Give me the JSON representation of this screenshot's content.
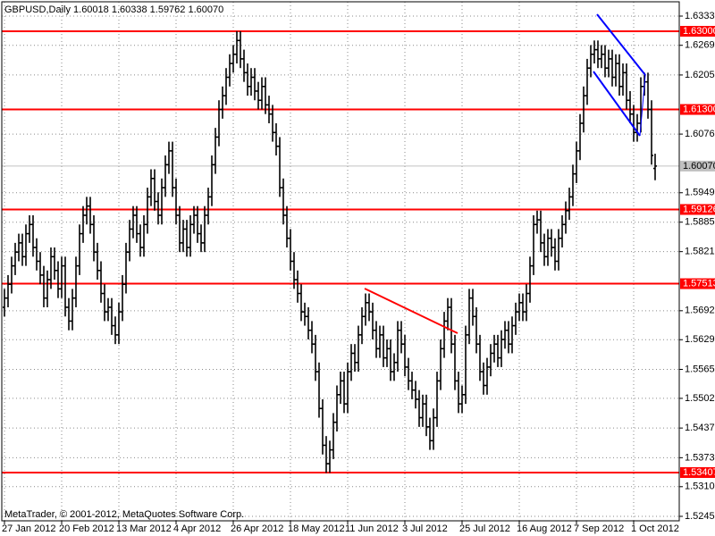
{
  "chart_data": {
    "type": "ohlc",
    "title": "GBPUSD,Daily 1.60018 1.60338 1.59762 1.60070",
    "footer": "MetaTrader, © 2001-2012, MetaQuotes Software Corp.",
    "ylim": [
      1.52358,
      1.63641
    ],
    "yticks": [
      {
        "value": 1.6333,
        "label": "1.63330"
      },
      {
        "value": 1.62695,
        "label": "1.62695"
      },
      {
        "value": 1.6205,
        "label": "1.62050"
      },
      {
        "value": 1.60765,
        "label": "1.60765"
      },
      {
        "value": 1.5949,
        "label": "1.59490"
      },
      {
        "value": 1.5885,
        "label": "1.58850"
      },
      {
        "value": 1.5821,
        "label": "1.58210"
      },
      {
        "value": 1.56925,
        "label": "1.56925"
      },
      {
        "value": 1.56295,
        "label": "1.56295"
      },
      {
        "value": 1.5565,
        "label": "1.55650"
      },
      {
        "value": 1.5502,
        "label": "1.55020"
      },
      {
        "value": 1.54375,
        "label": "1.54375"
      },
      {
        "value": 1.5373,
        "label": "1.53730"
      },
      {
        "value": 1.531,
        "label": "1.53100"
      },
      {
        "value": 1.52455,
        "label": "1.52455"
      }
    ],
    "xticks": [
      {
        "value": 0,
        "label": "27 Jan 2012"
      },
      {
        "value": 16,
        "label": "20 Feb 2012"
      },
      {
        "value": 32,
        "label": "13 Mar 2012"
      },
      {
        "value": 48,
        "label": "4 Apr 2012"
      },
      {
        "value": 64,
        "label": "26 Apr 2012"
      },
      {
        "value": 80,
        "label": "18 May 2012"
      },
      {
        "value": 96,
        "label": "11 Jun 2012"
      },
      {
        "value": 112,
        "label": "3 Jul 2012"
      },
      {
        "value": 128,
        "label": "25 Jul 2012"
      },
      {
        "value": 144,
        "label": "16 Aug 2012"
      },
      {
        "value": 160,
        "label": "7 Sep 2012"
      },
      {
        "value": 176,
        "label": "1 Oct 2012"
      }
    ],
    "grid": true,
    "bar_color": "#000000",
    "levels": [
      {
        "value": 1.63,
        "label": "1.63000"
      },
      {
        "value": 1.613,
        "label": "1.61300"
      },
      {
        "value": 1.59126,
        "label": "1.59126"
      },
      {
        "value": 1.57513,
        "label": "1.57513"
      },
      {
        "value": 1.53407,
        "label": "1.53407"
      }
    ],
    "level_color": "#ff0000",
    "current_price": {
      "value": 1.6007,
      "label": "1.60070"
    },
    "ohlc": [
      [
        1.57,
        1.574,
        1.568,
        1.572
      ],
      [
        1.572,
        1.577,
        1.57,
        1.575
      ],
      [
        1.575,
        1.581,
        1.573,
        1.579
      ],
      [
        1.579,
        1.584,
        1.577,
        1.582
      ],
      [
        1.582,
        1.586,
        1.58,
        1.584
      ],
      [
        1.584,
        1.586,
        1.579,
        1.581
      ],
      [
        1.581,
        1.588,
        1.579,
        1.586
      ],
      [
        1.586,
        1.59,
        1.584,
        1.588
      ],
      [
        1.588,
        1.59,
        1.581,
        1.583
      ],
      [
        1.583,
        1.585,
        1.578,
        1.58
      ],
      [
        1.58,
        1.582,
        1.575,
        1.577
      ],
      [
        1.577,
        1.579,
        1.57,
        1.572
      ],
      [
        1.572,
        1.578,
        1.57,
        1.576
      ],
      [
        1.576,
        1.583,
        1.574,
        1.581
      ],
      [
        1.581,
        1.583,
        1.576,
        1.578
      ],
      [
        1.578,
        1.58,
        1.572,
        1.574
      ],
      [
        1.574,
        1.581,
        1.572,
        1.579
      ],
      [
        1.579,
        1.581,
        1.568,
        1.57
      ],
      [
        1.57,
        1.572,
        1.565,
        1.567
      ],
      [
        1.567,
        1.574,
        1.565,
        1.572
      ],
      [
        1.572,
        1.581,
        1.57,
        1.579
      ],
      [
        1.579,
        1.588,
        1.577,
        1.586
      ],
      [
        1.586,
        1.592,
        1.584,
        1.59
      ],
      [
        1.59,
        1.594,
        1.588,
        1.592
      ],
      [
        1.592,
        1.594,
        1.586,
        1.588
      ],
      [
        1.588,
        1.59,
        1.58,
        1.582
      ],
      [
        1.582,
        1.584,
        1.576,
        1.578
      ],
      [
        1.578,
        1.58,
        1.571,
        1.573
      ],
      [
        1.573,
        1.575,
        1.567,
        1.569
      ],
      [
        1.569,
        1.572,
        1.567,
        1.57
      ],
      [
        1.57,
        1.572,
        1.564,
        1.566
      ],
      [
        1.566,
        1.568,
        1.562,
        1.564
      ],
      [
        1.564,
        1.571,
        1.562,
        1.569
      ],
      [
        1.569,
        1.577,
        1.567,
        1.575
      ],
      [
        1.575,
        1.584,
        1.573,
        1.582
      ],
      [
        1.582,
        1.589,
        1.58,
        1.587
      ],
      [
        1.587,
        1.592,
        1.585,
        1.59
      ],
      [
        1.59,
        1.592,
        1.584,
        1.586
      ],
      [
        1.586,
        1.588,
        1.581,
        1.583
      ],
      [
        1.583,
        1.59,
        1.581,
        1.588
      ],
      [
        1.588,
        1.596,
        1.586,
        1.594
      ],
      [
        1.594,
        1.6,
        1.592,
        1.598
      ],
      [
        1.598,
        1.6,
        1.591,
        1.593
      ],
      [
        1.593,
        1.595,
        1.588,
        1.59
      ],
      [
        1.59,
        1.598,
        1.588,
        1.596
      ],
      [
        1.596,
        1.603,
        1.594,
        1.601
      ],
      [
        1.601,
        1.606,
        1.599,
        1.604
      ],
      [
        1.604,
        1.606,
        1.594,
        1.596
      ],
      [
        1.596,
        1.598,
        1.588,
        1.59
      ],
      [
        1.59,
        1.592,
        1.582,
        1.584
      ],
      [
        1.584,
        1.589,
        1.582,
        1.587
      ],
      [
        1.587,
        1.589,
        1.581,
        1.583
      ],
      [
        1.583,
        1.59,
        1.581,
        1.588
      ],
      [
        1.588,
        1.592,
        1.586,
        1.59
      ],
      [
        1.59,
        1.592,
        1.584,
        1.586
      ],
      [
        1.586,
        1.588,
        1.582,
        1.584
      ],
      [
        1.584,
        1.592,
        1.582,
        1.59
      ],
      [
        1.59,
        1.596,
        1.588,
        1.594
      ],
      [
        1.594,
        1.603,
        1.592,
        1.601
      ],
      [
        1.601,
        1.609,
        1.599,
        1.607
      ],
      [
        1.607,
        1.615,
        1.605,
        1.613
      ],
      [
        1.613,
        1.618,
        1.611,
        1.616
      ],
      [
        1.616,
        1.622,
        1.614,
        1.62
      ],
      [
        1.62,
        1.625,
        1.618,
        1.623
      ],
      [
        1.623,
        1.627,
        1.621,
        1.625
      ],
      [
        1.625,
        1.63,
        1.623,
        1.628
      ],
      [
        1.628,
        1.63,
        1.622,
        1.624
      ],
      [
        1.624,
        1.626,
        1.619,
        1.621
      ],
      [
        1.621,
        1.623,
        1.616,
        1.618
      ],
      [
        1.618,
        1.622,
        1.616,
        1.62
      ],
      [
        1.62,
        1.622,
        1.615,
        1.617
      ],
      [
        1.617,
        1.619,
        1.613,
        1.615
      ],
      [
        1.615,
        1.62,
        1.613,
        1.618
      ],
      [
        1.618,
        1.62,
        1.612,
        1.614
      ],
      [
        1.614,
        1.616,
        1.61,
        1.612
      ],
      [
        1.612,
        1.614,
        1.606,
        1.608
      ],
      [
        1.608,
        1.61,
        1.603,
        1.605
      ],
      [
        1.605,
        1.607,
        1.594,
        1.596
      ],
      [
        1.596,
        1.598,
        1.588,
        1.59
      ],
      [
        1.59,
        1.592,
        1.583,
        1.585
      ],
      [
        1.585,
        1.587,
        1.578,
        1.58
      ],
      [
        1.58,
        1.582,
        1.574,
        1.576
      ],
      [
        1.576,
        1.578,
        1.571,
        1.573
      ],
      [
        1.573,
        1.575,
        1.567,
        1.569
      ],
      [
        1.569,
        1.571,
        1.566,
        1.568
      ],
      [
        1.568,
        1.57,
        1.563,
        1.565
      ],
      [
        1.565,
        1.567,
        1.56,
        1.562
      ],
      [
        1.562,
        1.564,
        1.554,
        1.556
      ],
      [
        1.556,
        1.558,
        1.546,
        1.548
      ],
      [
        1.548,
        1.55,
        1.538,
        1.54
      ],
      [
        1.54,
        1.542,
        1.534,
        1.536
      ],
      [
        1.536,
        1.541,
        1.534,
        1.539
      ],
      [
        1.539,
        1.547,
        1.537,
        1.545
      ],
      [
        1.545,
        1.553,
        1.543,
        1.551
      ],
      [
        1.551,
        1.556,
        1.549,
        1.554
      ],
      [
        1.554,
        1.556,
        1.547,
        1.549
      ],
      [
        1.549,
        1.558,
        1.547,
        1.556
      ],
      [
        1.556,
        1.562,
        1.554,
        1.56
      ],
      [
        1.56,
        1.562,
        1.556,
        1.558
      ],
      [
        1.558,
        1.566,
        1.556,
        1.564
      ],
      [
        1.564,
        1.57,
        1.562,
        1.568
      ],
      [
        1.568,
        1.573,
        1.566,
        1.571
      ],
      [
        1.571,
        1.573,
        1.567,
        1.569
      ],
      [
        1.569,
        1.571,
        1.563,
        1.565
      ],
      [
        1.565,
        1.567,
        1.559,
        1.561
      ],
      [
        1.561,
        1.566,
        1.559,
        1.564
      ],
      [
        1.564,
        1.566,
        1.557,
        1.559
      ],
      [
        1.559,
        1.563,
        1.557,
        1.561
      ],
      [
        1.561,
        1.563,
        1.554,
        1.556
      ],
      [
        1.556,
        1.56,
        1.554,
        1.558
      ],
      [
        1.558,
        1.567,
        1.556,
        1.565
      ],
      [
        1.565,
        1.567,
        1.56,
        1.562
      ],
      [
        1.562,
        1.564,
        1.555,
        1.557
      ],
      [
        1.557,
        1.559,
        1.552,
        1.554
      ],
      [
        1.554,
        1.556,
        1.55,
        1.552
      ],
      [
        1.552,
        1.554,
        1.548,
        1.55
      ],
      [
        1.55,
        1.552,
        1.544,
        1.546
      ],
      [
        1.546,
        1.551,
        1.544,
        1.549
      ],
      [
        1.549,
        1.551,
        1.542,
        1.544
      ],
      [
        1.544,
        1.546,
        1.539,
        1.541
      ],
      [
        1.541,
        1.548,
        1.539,
        1.546
      ],
      [
        1.546,
        1.556,
        1.544,
        1.554
      ],
      [
        1.554,
        1.563,
        1.552,
        1.561
      ],
      [
        1.561,
        1.569,
        1.559,
        1.567
      ],
      [
        1.567,
        1.572,
        1.565,
        1.57
      ],
      [
        1.57,
        1.572,
        1.56,
        1.562
      ],
      [
        1.562,
        1.564,
        1.552,
        1.554
      ],
      [
        1.554,
        1.556,
        1.547,
        1.549
      ],
      [
        1.549,
        1.553,
        1.547,
        1.551
      ],
      [
        1.551,
        1.566,
        1.549,
        1.564
      ],
      [
        1.564,
        1.574,
        1.562,
        1.572
      ],
      [
        1.572,
        1.574,
        1.566,
        1.568
      ],
      [
        1.568,
        1.57,
        1.56,
        1.562
      ],
      [
        1.562,
        1.564,
        1.554,
        1.556
      ],
      [
        1.556,
        1.558,
        1.551,
        1.553
      ],
      [
        1.553,
        1.559,
        1.551,
        1.557
      ],
      [
        1.557,
        1.562,
        1.555,
        1.56
      ],
      [
        1.56,
        1.564,
        1.558,
        1.562
      ],
      [
        1.562,
        1.564,
        1.557,
        1.559
      ],
      [
        1.559,
        1.565,
        1.557,
        1.563
      ],
      [
        1.563,
        1.567,
        1.561,
        1.565
      ],
      [
        1.565,
        1.567,
        1.56,
        1.562
      ],
      [
        1.562,
        1.568,
        1.56,
        1.566
      ],
      [
        1.566,
        1.571,
        1.564,
        1.569
      ],
      [
        1.569,
        1.573,
        1.567,
        1.571
      ],
      [
        1.571,
        1.573,
        1.567,
        1.569
      ],
      [
        1.569,
        1.575,
        1.567,
        1.573
      ],
      [
        1.573,
        1.581,
        1.571,
        1.579
      ],
      [
        1.579,
        1.59,
        1.577,
        1.588
      ],
      [
        1.588,
        1.591,
        1.586,
        1.589
      ],
      [
        1.589,
        1.591,
        1.582,
        1.584
      ],
      [
        1.584,
        1.586,
        1.579,
        1.581
      ],
      [
        1.581,
        1.587,
        1.579,
        1.585
      ],
      [
        1.585,
        1.587,
        1.581,
        1.583
      ],
      [
        1.583,
        1.585,
        1.578,
        1.58
      ],
      [
        1.58,
        1.587,
        1.578,
        1.585
      ],
      [
        1.585,
        1.59,
        1.583,
        1.588
      ],
      [
        1.588,
        1.593,
        1.586,
        1.591
      ],
      [
        1.591,
        1.596,
        1.589,
        1.594
      ],
      [
        1.594,
        1.601,
        1.592,
        1.599
      ],
      [
        1.599,
        1.606,
        1.597,
        1.604
      ],
      [
        1.604,
        1.612,
        1.602,
        1.61
      ],
      [
        1.61,
        1.618,
        1.608,
        1.616
      ],
      [
        1.616,
        1.624,
        1.614,
        1.622
      ],
      [
        1.622,
        1.627,
        1.62,
        1.625
      ],
      [
        1.625,
        1.628,
        1.623,
        1.626
      ],
      [
        1.626,
        1.628,
        1.622,
        1.624
      ],
      [
        1.624,
        1.627,
        1.622,
        1.625
      ],
      [
        1.625,
        1.627,
        1.62,
        1.622
      ],
      [
        1.622,
        1.626,
        1.62,
        1.624
      ],
      [
        1.624,
        1.626,
        1.618,
        1.62
      ],
      [
        1.62,
        1.625,
        1.618,
        1.623
      ],
      [
        1.623,
        1.625,
        1.616,
        1.618
      ],
      [
        1.618,
        1.623,
        1.616,
        1.621
      ],
      [
        1.621,
        1.623,
        1.613,
        1.615
      ],
      [
        1.615,
        1.617,
        1.61,
        1.612
      ],
      [
        1.612,
        1.614,
        1.606,
        1.608
      ],
      [
        1.608,
        1.612,
        1.606,
        1.61
      ],
      [
        1.61,
        1.62,
        1.608,
        1.618
      ],
      [
        1.618,
        1.621,
        1.616,
        1.619
      ],
      [
        1.619,
        1.621,
        1.611,
        1.613
      ],
      [
        1.613,
        1.615,
        1.601,
        1.603
      ],
      [
        1.60018,
        1.60338,
        1.59762,
        1.6007
      ]
    ]
  }
}
